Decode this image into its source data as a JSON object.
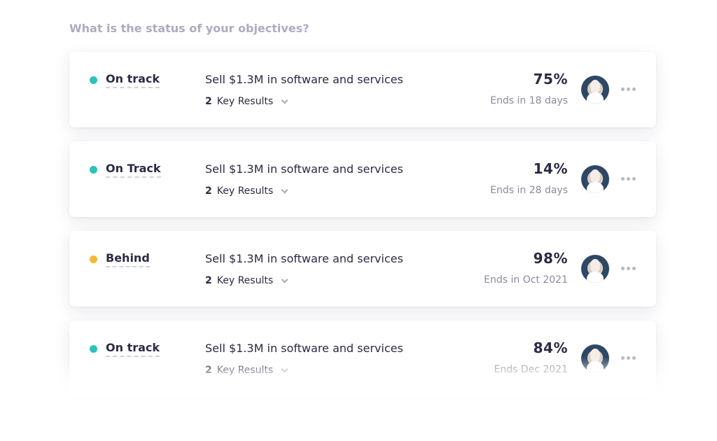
{
  "heading": "What is the status of your objectives?",
  "colors": {
    "on_track": "#2cc1bf",
    "behind": "#f5b73a"
  },
  "objectives": [
    {
      "status": "On track",
      "status_color": "#2cc1bf",
      "title": "Sell $1.3M in software and services",
      "key_results_count": "2",
      "key_results_label": "Key Results",
      "progress": "75%",
      "ends": "Ends in 18 days",
      "avatar_icon": "avatar",
      "menu_icon": "more-icon"
    },
    {
      "status": "On Track",
      "status_color": "#2cc1bf",
      "title": "Sell $1.3M in software and services",
      "key_results_count": "2",
      "key_results_label": "Key Results",
      "progress": "14%",
      "ends": "Ends in 28 days",
      "avatar_icon": "avatar",
      "menu_icon": "more-icon"
    },
    {
      "status": "Behind",
      "status_color": "#f5b73a",
      "title": "Sell $1.3M in software and services",
      "key_results_count": "2",
      "key_results_label": "Key Results",
      "progress": "98%",
      "ends": "Ends in Oct 2021",
      "avatar_icon": "avatar",
      "menu_icon": "more-icon"
    },
    {
      "status": "On track",
      "status_color": "#2cc1bf",
      "title": "Sell $1.3M in software and services",
      "key_results_count": "2",
      "key_results_label": "Key Results",
      "progress": "84%",
      "ends": "Ends Dec 2021",
      "avatar_icon": "avatar",
      "menu_icon": "more-icon"
    }
  ]
}
